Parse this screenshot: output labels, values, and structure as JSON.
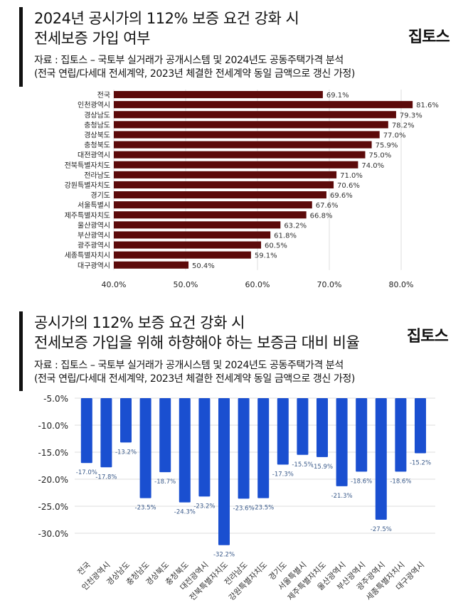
{
  "logo": "집토스",
  "chart_data": [
    {
      "type": "bar",
      "orientation": "horizontal",
      "title_lines": [
        "2024년 공시가의 112% 보증 요건 강화 시",
        "전세보증 가입 여부"
      ],
      "source_lines": [
        "자료 : 집토스 – 국토부 실거래가 공개시스템 및 2024년도 공동주택가격 분석",
        "(전국 연립/다세대 전세계약, 2023년 체결한 전세계약 동일 금액으로 갱신 가정)"
      ],
      "categories": [
        "전국",
        "인천광역시",
        "경상남도",
        "충청남도",
        "경상북도",
        "충청북도",
        "대전광역시",
        "전북특별자치도",
        "전라남도",
        "강원특별자치도",
        "경기도",
        "서울특별시",
        "제주특별자치도",
        "울산광역시",
        "부산광역시",
        "광주광역시",
        "세종특별자치시",
        "대구광역시"
      ],
      "values": [
        69.1,
        81.6,
        79.3,
        78.2,
        77.0,
        75.9,
        75.0,
        74.0,
        71.0,
        70.6,
        69.6,
        67.6,
        66.8,
        63.2,
        61.8,
        60.5,
        59.1,
        50.4
      ],
      "data_labels": [
        "69.1%",
        "81.6%",
        "79.3%",
        "78.2%",
        "77.0%",
        "75.9%",
        "75.0%",
        "74.0%",
        "71.0%",
        "70.6%",
        "69.6%",
        "67.6%",
        "66.8%",
        "63.2%",
        "61.8%",
        "60.5%",
        "59.1%",
        "50.4%"
      ],
      "xlim": [
        40,
        83
      ],
      "xticks": [
        "40.0%",
        "50.0%",
        "60.0%",
        "70.0%",
        "80.0%"
      ],
      "xtick_values": [
        40,
        50,
        60,
        70,
        80
      ],
      "grid": true,
      "color": "#5c0a0a"
    },
    {
      "type": "bar",
      "orientation": "vertical",
      "title_lines": [
        "공시가의 112% 보증 요건 강화 시",
        "전세보증 가입을 위해 하향해야 하는 보증금 대비 비율"
      ],
      "source_lines": [
        "자료 : 집토스 – 국토부 실거래가 공개시스템 및 2024년도 공동주택가격 분석",
        "(전국 연립/다세대 전세계약, 2023년 체결한 전세계약 동일 금액으로 갱신 가정)"
      ],
      "categories": [
        "전국",
        "인천광역시",
        "경상남도",
        "충청남도",
        "경상북도",
        "충청북도",
        "대전광역시",
        "전북특별자치도",
        "전라남도",
        "강원특별자치도",
        "경기도",
        "서울특별시",
        "제주특별자치도",
        "울산광역시",
        "부산광역시",
        "광주광역시",
        "세종특별자치시",
        "대구광역시"
      ],
      "values": [
        -17.0,
        -17.8,
        -13.2,
        -23.5,
        -18.7,
        -24.3,
        -23.2,
        -32.2,
        -23.6,
        -23.5,
        -17.3,
        -15.5,
        -15.9,
        -21.3,
        -18.6,
        -27.5,
        -18.6,
        -15.2
      ],
      "data_labels": [
        "-17.0%",
        "-17.8%",
        "-13.2%",
        "-23.5%",
        "-18.7%",
        "-24.3%",
        "-23.2%",
        "-32.2%",
        "-23.6%",
        "-23.5%",
        "-17.3%",
        "-15.5%",
        "-15.9%",
        "-21.3%",
        "-18.6%",
        "-27.5%",
        "-18.6%",
        "-15.2%"
      ],
      "ylim": [
        -5,
        -32.5
      ],
      "yticks": [
        "-5.0%",
        "-10.0%",
        "-15.0%",
        "-20.0%",
        "-25.0%",
        "-30.0%"
      ],
      "ytick_values": [
        -5,
        -10,
        -15,
        -20,
        -25,
        -30
      ],
      "grid": true,
      "color": "#1a4fd0"
    }
  ]
}
